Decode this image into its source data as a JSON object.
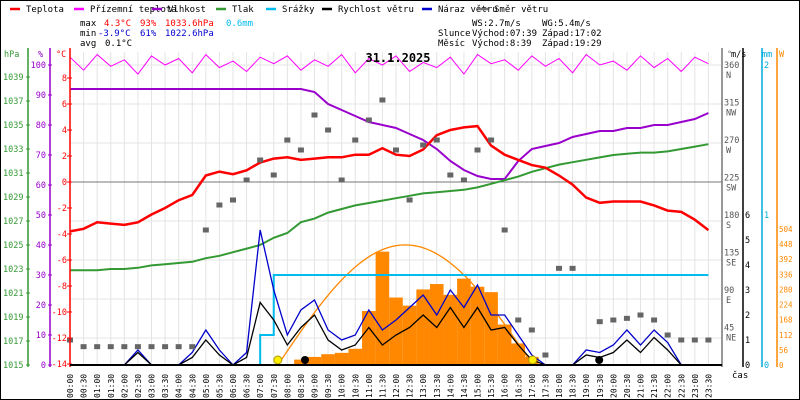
{
  "legend": [
    {
      "label": "Teplota",
      "color": "#ff0000"
    },
    {
      "label": "Přízemní teplota",
      "color": "#ff00ff"
    },
    {
      "label": "Vlhkost",
      "color": "#9900cc"
    },
    {
      "label": "Tlak",
      "color": "#339933"
    },
    {
      "label": "Srážky",
      "color": "#00bbee"
    },
    {
      "label": "Rychlost větru",
      "color": "#000000"
    },
    {
      "label": "Náraz větru",
      "color": "#0000cc"
    },
    {
      "label": "Směr větru",
      "color": "#777777"
    }
  ],
  "stats": {
    "max_label": "max",
    "max_temp": "4.3°C",
    "max_hum": "93%",
    "max_press": "1033.6hPa",
    "max_rain": "0.6mm",
    "min_label": "min",
    "min_temp": "-3.9°C",
    "min_hum": "61%",
    "min_press": "1022.6hPa",
    "avg_label": "avg",
    "avg_temp": "0.1°C",
    "ws": "WS:2.7m/s",
    "wg": "WG:5.4m/s",
    "sun_label": "Slunce",
    "sun_rise": "Východ:07:39",
    "sun_set": "Západ:17:02",
    "moon_label": "Měsíc",
    "moon_rise": "Východ:8:39",
    "moon_set": "Západ:19:29"
  },
  "chart_data": {
    "type": "line",
    "title": "31.1.2025",
    "xlabel": "čas",
    "x": [
      "00:00",
      "00:30",
      "01:00",
      "01:30",
      "02:00",
      "02:30",
      "03:00",
      "03:30",
      "04:00",
      "04:30",
      "05:00",
      "05:30",
      "06:00",
      "06:30",
      "07:00",
      "07:30",
      "08:00",
      "08:30",
      "09:00",
      "09:30",
      "10:00",
      "10:30",
      "11:00",
      "11:30",
      "12:00",
      "12:30",
      "13:00",
      "13:30",
      "14:00",
      "14:30",
      "15:00",
      "15:30",
      "16:00",
      "16:30",
      "17:00",
      "17:30",
      "18:00",
      "18:30",
      "19:00",
      "19:30",
      "20:00",
      "20:30",
      "21:00",
      "21:30",
      "22:00",
      "22:30",
      "23:00",
      "23:30"
    ],
    "axes": {
      "hpa": {
        "label": "hPa",
        "range": [
          1015,
          1040
        ],
        "ticks": [
          "1039",
          "1037",
          "1035",
          "1033",
          "1031",
          "1029",
          "1027",
          "1025",
          "1023",
          "1021",
          "1019",
          "1017",
          "1015"
        ]
      },
      "percent": {
        "label": "%",
        "range": [
          0,
          100
        ],
        "ticks": [
          "100",
          "90",
          "80",
          "70",
          "60",
          "50",
          "40",
          "30",
          "20",
          "10",
          "0"
        ]
      },
      "celsius": {
        "label": "°C",
        "range": [
          -14,
          10
        ],
        "ticks": [
          "8",
          "6",
          "4",
          "2",
          "0",
          "-2",
          "-4",
          "-6",
          "-8",
          "-10",
          "-12",
          "-14"
        ]
      },
      "degrees": {
        "label": "°",
        "range": [
          0,
          360
        ],
        "ticks": [
          "360",
          "315",
          "270",
          "225",
          "180",
          "135",
          "90",
          "45"
        ],
        "dirs": [
          "N",
          "NW",
          "W",
          "SW",
          "S",
          "SE",
          "E",
          "NE"
        ]
      },
      "ms": {
        "label": "m/s",
        "range": [
          0,
          6
        ],
        "ticks": [
          "6",
          "5",
          "4",
          "3",
          "2",
          "1",
          "0"
        ]
      },
      "mm": {
        "label": "mm",
        "range": [
          0,
          2
        ],
        "ticks": [
          "2",
          "1",
          "0"
        ]
      },
      "w": {
        "label": "W",
        "range": [
          0,
          560
        ],
        "ticks": [
          "504",
          "448",
          "392",
          "336",
          "280",
          "224",
          "168",
          "112",
          "56",
          "0"
        ]
      }
    },
    "series": {
      "temperature_c": [
        -3.8,
        -3.6,
        -3.1,
        -3.2,
        -3.3,
        -3.1,
        -2.5,
        -2.0,
        -1.4,
        -1.0,
        0.5,
        0.8,
        0.6,
        0.9,
        1.5,
        1.8,
        1.9,
        1.7,
        1.8,
        1.9,
        1.9,
        2.1,
        2.1,
        2.6,
        2.1,
        2.0,
        2.5,
        3.6,
        4.0,
        4.2,
        4.3,
        2.8,
        2.1,
        1.7,
        1.3,
        1.1,
        0.5,
        -0.2,
        -1.2,
        -1.6,
        -1.5,
        -1.5,
        -1.5,
        -1.8,
        -2.2,
        -2.3,
        -2.9,
        -3.7
      ],
      "apparent_temp_c": [
        9.6,
        8.6,
        9.8,
        8.9,
        9.4,
        8.3,
        9.7,
        9.0,
        9.5,
        8.4,
        9.8,
        8.8,
        9.3,
        8.5,
        9.6,
        9.1,
        9.7,
        8.6,
        9.4,
        8.9,
        9.8,
        8.4,
        9.5,
        9.0,
        9.7,
        8.5,
        9.2,
        8.8,
        9.6,
        8.3,
        9.8,
        9.1,
        9.4,
        8.6,
        9.7,
        8.9,
        9.5,
        8.4,
        9.8,
        9.0,
        9.3,
        8.6,
        9.7,
        8.8,
        9.5,
        8.5,
        9.6,
        9.1
      ],
      "humidity_pct": [
        92,
        92,
        92,
        92,
        92,
        92,
        92,
        92,
        92,
        92,
        92,
        92,
        92,
        92,
        92,
        92,
        92,
        92,
        91,
        87,
        85,
        83,
        81,
        80,
        79,
        77,
        75,
        72,
        68,
        65,
        63,
        62,
        62,
        68,
        72,
        73,
        74,
        76,
        77,
        78,
        78,
        79,
        79,
        80,
        80,
        81,
        82,
        84
      ],
      "pressure_hpa": [
        1022.9,
        1022.9,
        1022.9,
        1023.0,
        1023.0,
        1023.1,
        1023.3,
        1023.4,
        1023.5,
        1023.6,
        1023.9,
        1024.1,
        1024.4,
        1024.7,
        1025.0,
        1025.6,
        1026.0,
        1026.9,
        1027.2,
        1027.7,
        1028.0,
        1028.3,
        1028.5,
        1028.7,
        1028.9,
        1029.1,
        1029.3,
        1029.4,
        1029.5,
        1029.6,
        1029.8,
        1030.1,
        1030.4,
        1030.7,
        1031.1,
        1031.4,
        1031.7,
        1031.9,
        1032.1,
        1032.3,
        1032.5,
        1032.6,
        1032.7,
        1032.7,
        1032.8,
        1033.0,
        1033.2,
        1033.4
      ],
      "rain_mm": [
        0,
        0,
        0,
        0,
        0,
        0,
        0,
        0,
        0,
        0,
        0,
        0,
        0,
        0,
        0.2,
        0.6,
        0.6,
        0.6,
        0.6,
        0.6,
        0.6,
        0.6,
        0.6,
        0.6,
        0.6,
        0.6,
        0.6,
        0.6,
        0.6,
        0.6,
        0.6,
        0.6,
        0.6,
        0.6,
        0.6,
        0.6,
        0.6,
        0.6,
        0.6,
        0.6,
        0.6,
        0.6,
        0.6,
        0.6,
        0.6,
        0.6,
        0.6,
        0.6
      ],
      "wind_speed_ms": [
        0,
        0,
        0,
        0,
        0,
        0.5,
        0,
        0,
        0,
        0.3,
        1.0,
        0.4,
        0,
        0.3,
        2.5,
        1.8,
        0.8,
        1.5,
        2.0,
        1.0,
        0.6,
        0.8,
        1.5,
        0.8,
        1.2,
        1.5,
        2.0,
        1.5,
        2.3,
        1.5,
        2.3,
        1.4,
        1.5,
        0.8,
        0.2,
        0,
        0,
        0,
        0.4,
        0.3,
        0.5,
        1.0,
        0.5,
        1.1,
        0.6,
        0,
        0,
        0
      ],
      "wind_gust_ms": [
        0,
        0,
        0,
        0,
        0,
        0.6,
        0,
        0,
        0,
        0.5,
        1.4,
        0.6,
        0,
        0.5,
        5.4,
        3.0,
        1.2,
        2.2,
        2.6,
        1.4,
        1.0,
        1.2,
        2.2,
        1.4,
        1.8,
        2.3,
        2.8,
        2.0,
        3.0,
        2.3,
        3.2,
        2.0,
        2.0,
        1.2,
        0.4,
        0,
        0,
        0,
        0.6,
        0.5,
        0.8,
        1.4,
        0.8,
        1.4,
        0.9,
        0,
        0,
        0
      ],
      "wind_dir_deg": [
        30,
        22,
        22,
        22,
        22,
        22,
        22,
        22,
        22,
        22,
        162,
        192,
        198,
        222,
        246,
        228,
        270,
        258,
        300,
        282,
        222,
        270,
        294,
        318,
        258,
        198,
        264,
        270,
        228,
        222,
        258,
        270,
        162,
        54,
        42,
        12,
        116,
        116,
        null,
        52,
        54,
        56,
        60,
        54,
        36,
        30,
        30,
        30
      ],
      "solar_w": [
        0,
        0,
        0,
        0,
        0,
        0,
        0,
        0,
        0,
        0,
        0,
        0,
        0,
        0,
        0,
        0,
        0,
        20,
        30,
        40,
        45,
        60,
        200,
        420,
        250,
        220,
        280,
        300,
        260,
        320,
        290,
        270,
        150,
        80,
        30,
        0,
        0,
        0,
        0,
        0,
        0,
        0,
        0,
        0,
        0,
        0,
        0,
        0
      ],
      "solar_theoretical_peak_w": 445
    },
    "events": {
      "sunrise_h": 7.65,
      "sunset_h": 17.03,
      "moonrise_h": 8.65,
      "moonset_h": 19.48
    }
  }
}
